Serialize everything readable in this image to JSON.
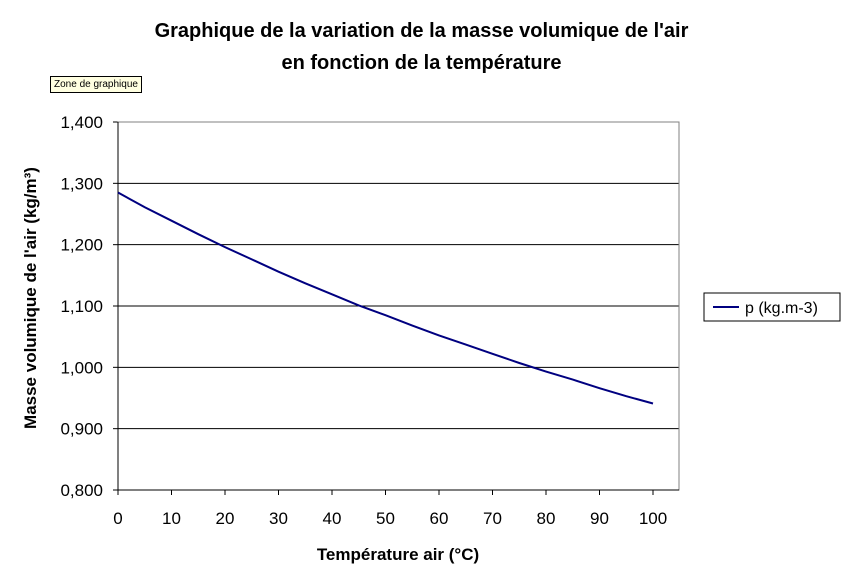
{
  "tooltip": "Zone de graphique",
  "chart_data": {
    "type": "line",
    "title": "Graphique de la variation de la masse volumique de l'air",
    "title_line2": "en fonction de la température",
    "xlabel": "Température air (°C)",
    "ylabel": "Masse volumique de l'air (kg/m³)",
    "xlim": [
      0,
      100
    ],
    "ylim": [
      0.8,
      1.4
    ],
    "x_ticks": [
      "0",
      "10",
      "20",
      "30",
      "40",
      "50",
      "60",
      "70",
      "80",
      "90",
      "100"
    ],
    "y_ticks": [
      "0,800",
      "0,900",
      "1,000",
      "1,100",
      "1,200",
      "1,300",
      "1,400"
    ],
    "grid": "horizontal",
    "legend_position": "right",
    "series": [
      {
        "name": "p (kg.m-3)",
        "color": "#000080",
        "x": [
          0,
          5,
          10,
          15,
          20,
          25,
          30,
          35,
          40,
          45,
          50,
          55,
          60,
          65,
          70,
          75,
          80,
          85,
          90,
          95,
          100
        ],
        "y": [
          1.285,
          1.261,
          1.239,
          1.217,
          1.196,
          1.176,
          1.156,
          1.137,
          1.119,
          1.101,
          1.085,
          1.068,
          1.052,
          1.037,
          1.022,
          1.007,
          0.993,
          0.98,
          0.966,
          0.953,
          0.941
        ]
      }
    ]
  }
}
